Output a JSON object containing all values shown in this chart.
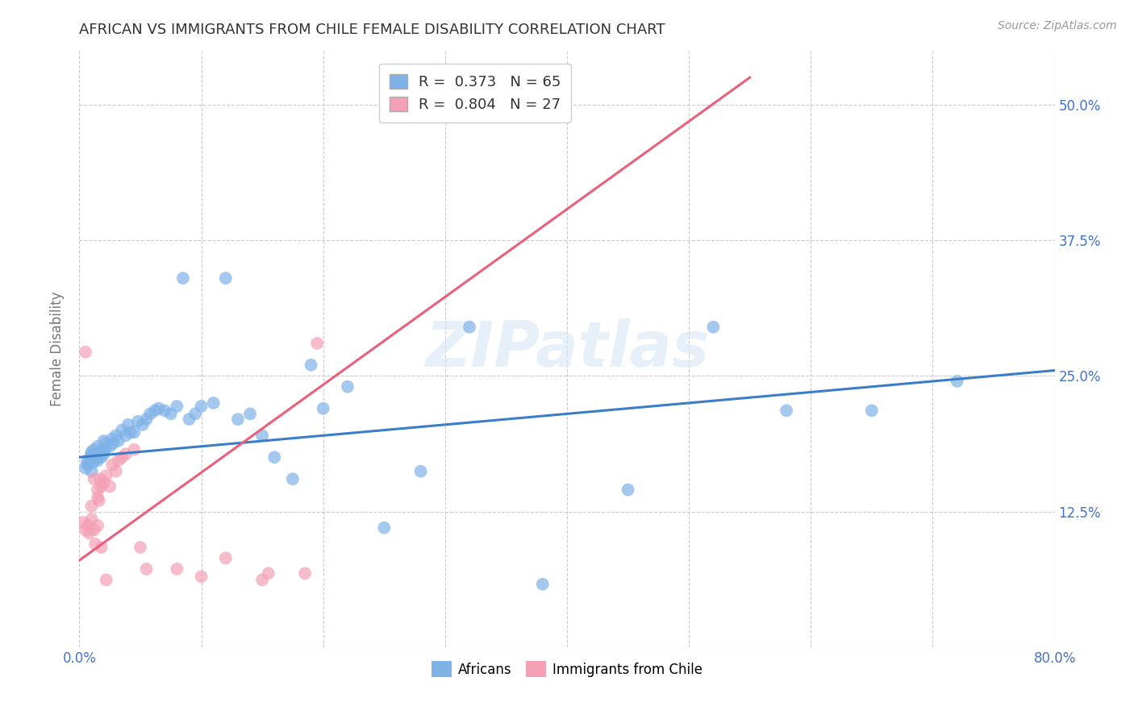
{
  "title": "AFRICAN VS IMMIGRANTS FROM CHILE FEMALE DISABILITY CORRELATION CHART",
  "source": "Source: ZipAtlas.com",
  "xlabel": "",
  "ylabel": "Female Disability",
  "watermark": "ZIPatlas",
  "xlim": [
    0.0,
    0.8
  ],
  "ylim": [
    0.0,
    0.55
  ],
  "xticks": [
    0.0,
    0.1,
    0.2,
    0.3,
    0.4,
    0.5,
    0.6,
    0.7,
    0.8
  ],
  "xticklabels": [
    "0.0%",
    "",
    "",
    "",
    "",
    "",
    "",
    "",
    "80.0%"
  ],
  "yticks": [
    0.0,
    0.125,
    0.25,
    0.375,
    0.5
  ],
  "yticklabels_right": [
    "",
    "12.5%",
    "25.0%",
    "37.5%",
    "50.0%"
  ],
  "africans_R": 0.373,
  "africans_N": 65,
  "chile_R": 0.804,
  "chile_N": 27,
  "africans_color": "#7FB3E8",
  "chile_color": "#F4A0B5",
  "africans_line_color": "#3A7DC9",
  "chile_line_color": "#E8607A",
  "africans_scatter_x": [
    0.005,
    0.006,
    0.007,
    0.008,
    0.009,
    0.01,
    0.01,
    0.01,
    0.011,
    0.012,
    0.012,
    0.013,
    0.014,
    0.015,
    0.015,
    0.016,
    0.017,
    0.018,
    0.019,
    0.02,
    0.02,
    0.021,
    0.022,
    0.025,
    0.027,
    0.028,
    0.03,
    0.032,
    0.035,
    0.038,
    0.04,
    0.042,
    0.045,
    0.048,
    0.052,
    0.055,
    0.058,
    0.062,
    0.065,
    0.07,
    0.075,
    0.08,
    0.085,
    0.09,
    0.095,
    0.1,
    0.11,
    0.12,
    0.13,
    0.14,
    0.15,
    0.16,
    0.175,
    0.19,
    0.2,
    0.22,
    0.25,
    0.28,
    0.32,
    0.38,
    0.45,
    0.52,
    0.58,
    0.65,
    0.72
  ],
  "africans_scatter_y": [
    0.165,
    0.17,
    0.168,
    0.172,
    0.175,
    0.178,
    0.162,
    0.18,
    0.17,
    0.175,
    0.182,
    0.176,
    0.174,
    0.172,
    0.185,
    0.178,
    0.18,
    0.175,
    0.182,
    0.178,
    0.19,
    0.183,
    0.188,
    0.185,
    0.192,
    0.188,
    0.195,
    0.19,
    0.2,
    0.195,
    0.205,
    0.198,
    0.198,
    0.208,
    0.205,
    0.21,
    0.215,
    0.218,
    0.22,
    0.218,
    0.215,
    0.222,
    0.34,
    0.21,
    0.215,
    0.222,
    0.225,
    0.34,
    0.21,
    0.215,
    0.195,
    0.175,
    0.155,
    0.26,
    0.22,
    0.24,
    0.11,
    0.162,
    0.295,
    0.058,
    0.145,
    0.295,
    0.218,
    0.218,
    0.245
  ],
  "chile_scatter_x": [
    0.003,
    0.005,
    0.007,
    0.008,
    0.01,
    0.01,
    0.012,
    0.013,
    0.015,
    0.015,
    0.016,
    0.017,
    0.018,
    0.02,
    0.022,
    0.025,
    0.027,
    0.03,
    0.032,
    0.035,
    0.038,
    0.045,
    0.055,
    0.08,
    0.12,
    0.155,
    0.185
  ],
  "chile_scatter_y": [
    0.115,
    0.108,
    0.112,
    0.105,
    0.118,
    0.13,
    0.108,
    0.095,
    0.112,
    0.145,
    0.135,
    0.155,
    0.148,
    0.152,
    0.158,
    0.148,
    0.168,
    0.162,
    0.172,
    0.175,
    0.178,
    0.182,
    0.072,
    0.072,
    0.082,
    0.068,
    0.068
  ],
  "chile_scatter_extra_x": [
    0.005,
    0.012,
    0.015,
    0.018,
    0.022,
    0.05,
    0.1,
    0.15,
    0.195
  ],
  "chile_scatter_extra_y": [
    0.272,
    0.155,
    0.138,
    0.092,
    0.062,
    0.092,
    0.065,
    0.062,
    0.28
  ],
  "africans_line_x": [
    0.0,
    0.8
  ],
  "africans_line_y": [
    0.175,
    0.255
  ],
  "chile_line_x": [
    0.0,
    0.55
  ],
  "chile_line_y": [
    0.08,
    0.525
  ],
  "legend_labels": [
    "Africans",
    "Immigrants from Chile"
  ],
  "title_color": "#333333",
  "axis_label_color": "#777777",
  "tick_label_color": "#4472C4",
  "grid_color": "#CCCCCC",
  "background_color": "#FFFFFF"
}
